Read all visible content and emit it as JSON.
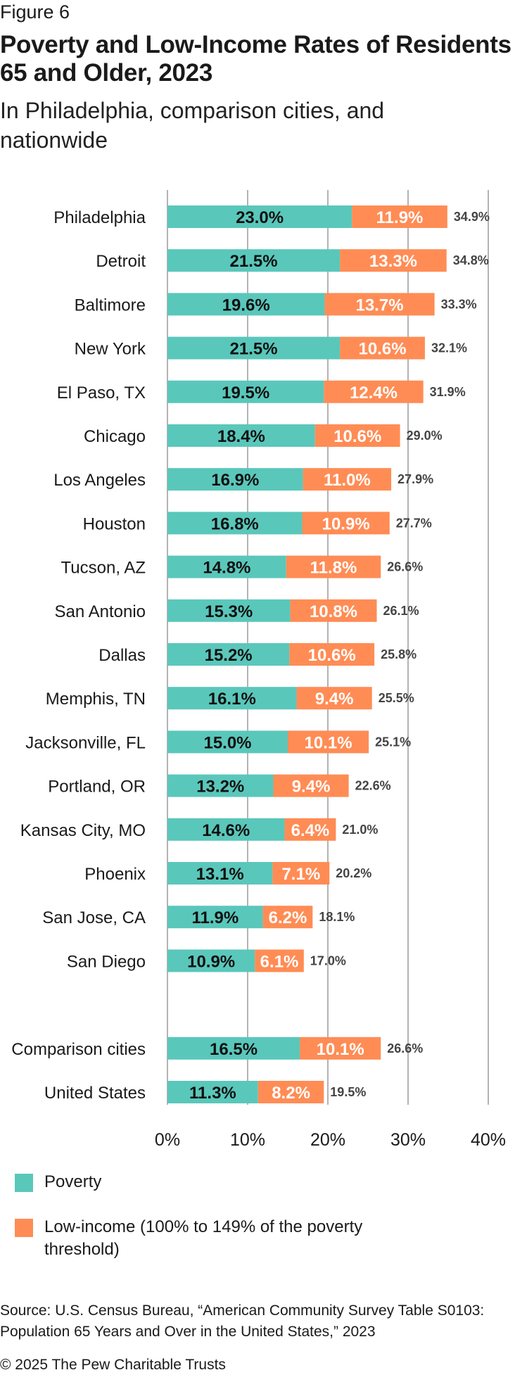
{
  "figure_label": "Figure 6",
  "title": "Poverty and Low-Income Rates of Residents 65 and Older, 2023",
  "subtitle": "In Philadelphia, comparison cities, and nationwide",
  "colors": {
    "poverty": "#5ac7bb",
    "low_income": "#ff8c55",
    "grid": "#9a9a9a"
  },
  "chart_data": {
    "type": "bar",
    "orientation": "horizontal",
    "stacked": true,
    "categories": [
      "Philadelphia",
      "Detroit",
      "Baltimore",
      "New York",
      "El Paso, TX",
      "Chicago",
      "Los Angeles",
      "Houston",
      "Tucson, AZ",
      "San Antonio",
      "Dallas",
      "Memphis, TN",
      "Jacksonville, FL",
      "Portland, OR",
      "Kansas City, MO",
      "Phoenix",
      "San Jose, CA",
      "San Diego",
      "",
      "Comparison cities",
      "United States"
    ],
    "series": [
      {
        "name": "Poverty",
        "color": "#5ac7bb",
        "values": [
          23.0,
          21.5,
          19.6,
          21.5,
          19.5,
          18.4,
          16.9,
          16.8,
          14.8,
          15.3,
          15.2,
          16.1,
          15.0,
          13.2,
          14.6,
          13.1,
          11.9,
          10.9,
          null,
          16.5,
          11.3
        ]
      },
      {
        "name": "Low-income (100% to 149% of the poverty threshold)",
        "color": "#ff8c55",
        "values": [
          11.9,
          13.3,
          13.7,
          10.6,
          12.4,
          10.6,
          11.0,
          10.9,
          11.8,
          10.8,
          10.6,
          9.4,
          10.1,
          9.4,
          6.4,
          7.1,
          6.2,
          6.1,
          null,
          10.1,
          8.2
        ]
      }
    ],
    "segment_labels": {
      "poverty": [
        "23.0%",
        "21.5%",
        "19.6%",
        "21.5%",
        "19.5%",
        "18.4%",
        "16.9%",
        "16.8%",
        "14.8%",
        "15.3%",
        "15.2%",
        "16.1%",
        "15.0%",
        "13.2%",
        "14.6%",
        "13.1%",
        "11.9%",
        "10.9%",
        "",
        "16.5%",
        "11.3%"
      ],
      "low_income": [
        "11.9%",
        "13.3%",
        "13.7%",
        "10.6%",
        "12.4%",
        "10.6%",
        "11.0%",
        "10.9%",
        "11.8%",
        "10.8%",
        "10.6%",
        "9.4%",
        "10.1%",
        "9.4%",
        "6.4%",
        "7.1%",
        "6.2%",
        "6.1%",
        "",
        "10.1%",
        "8.2%"
      ]
    },
    "totals": [
      "34.9%",
      "34.8%",
      "33.3%",
      "32.1%",
      "31.9%",
      "29.0%",
      "27.9%",
      "27.7%",
      "26.6%",
      "26.1%",
      "25.8%",
      "25.5%",
      "25.1%",
      "22.6%",
      "21.0%",
      "20.2%",
      "18.1%",
      "17.0%",
      "",
      "26.6%",
      "19.5%"
    ],
    "x_ticks": [
      0,
      10,
      20,
      30,
      40
    ],
    "x_tick_labels": [
      "0%",
      "10%",
      "20%",
      "30%",
      "40%"
    ],
    "xlim": [
      0,
      40
    ],
    "grid": true,
    "legend_position": "bottom"
  },
  "legend": [
    {
      "label": "Poverty",
      "color": "#5ac7bb"
    },
    {
      "label": "Low-income (100% to 149% of the poverty threshold)",
      "color": "#ff8c55"
    }
  ],
  "source": "Source: U.S. Census Bureau, “American Community Survey Table S0103: Population 65 Years and Over in the United States,” 2023",
  "copyright": "© 2025 The Pew Charitable Trusts"
}
